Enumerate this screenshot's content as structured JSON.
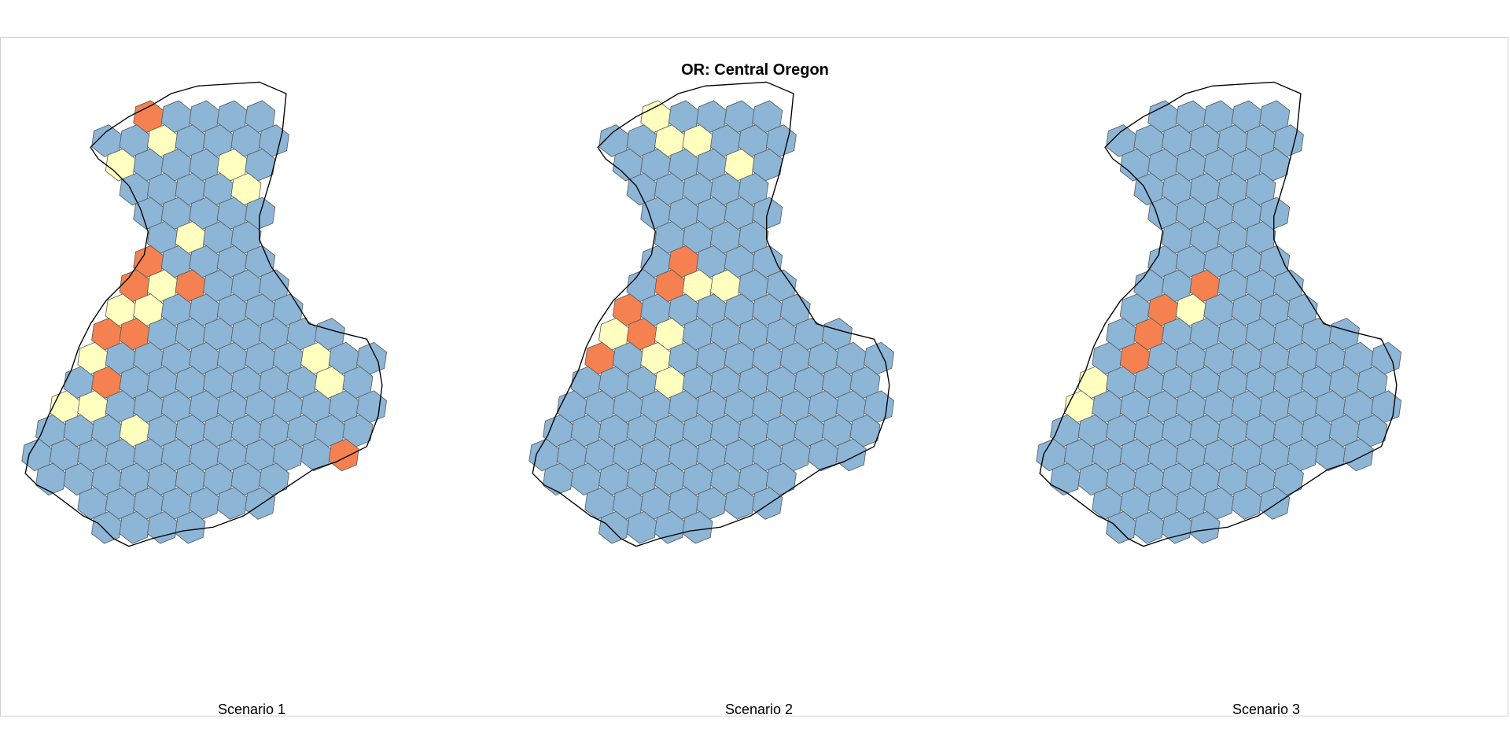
{
  "title": "OR: Central Oregon",
  "colors": {
    "base": "#8cb5d6",
    "moderate": "#ffffbf",
    "high": "#f4814f",
    "cell_edge": "#555555",
    "boundary": "#000000",
    "background": "#ffffff"
  },
  "icons": [
    "region-boundary-outline",
    "hexagonal-grid-cells"
  ],
  "panels": [
    {
      "label": "Scenario 1",
      "highlights": {
        "moderate": [
          [
            3,
            2
          ],
          [
            4,
            1
          ],
          [
            3,
            0
          ],
          [
            7,
            2
          ],
          [
            7,
            3
          ],
          [
            5,
            5
          ],
          [
            4,
            6
          ],
          [
            4,
            7
          ],
          [
            4,
            8
          ],
          [
            3,
            8
          ],
          [
            10,
            10
          ],
          [
            10,
            11
          ],
          [
            9,
            5
          ],
          [
            12,
            15
          ],
          [
            2,
            10
          ],
          [
            1,
            12
          ],
          [
            2,
            12
          ],
          [
            0,
            11
          ],
          [
            3,
            13
          ]
        ],
        "high": [
          [
            4,
            0
          ],
          [
            5,
            7
          ],
          [
            3,
            6
          ],
          [
            4,
            6
          ],
          [
            3,
            9
          ],
          [
            3,
            7
          ],
          [
            1,
            9
          ],
          [
            1,
            10
          ],
          [
            2,
            9
          ],
          [
            0,
            10
          ],
          [
            2,
            11
          ],
          [
            11,
            14
          ]
        ]
      }
    },
    {
      "label": "Scenario 2",
      "highlights": {
        "moderate": [
          [
            4,
            0
          ],
          [
            5,
            1
          ],
          [
            4,
            1
          ],
          [
            7,
            2
          ],
          [
            5,
            6
          ],
          [
            5,
            7
          ],
          [
            6,
            7
          ],
          [
            4,
            9
          ],
          [
            4,
            10
          ],
          [
            4,
            11
          ],
          [
            2,
            9
          ],
          [
            1,
            10
          ],
          [
            11,
            17
          ],
          [
            12,
            17
          ]
        ],
        "high": [
          [
            5,
            6
          ],
          [
            4,
            7
          ],
          [
            3,
            8
          ],
          [
            3,
            9
          ],
          [
            2,
            10
          ]
        ]
      }
    },
    {
      "label": "Scenario 3",
      "highlights": {
        "moderate": [
          [
            5,
            8
          ],
          [
            1,
            11
          ],
          [
            1,
            12
          ],
          [
            0,
            12
          ]
        ],
        "high": [
          [
            5,
            7
          ],
          [
            4,
            8
          ],
          [
            3,
            9
          ],
          [
            3,
            10
          ]
        ]
      }
    }
  ]
}
